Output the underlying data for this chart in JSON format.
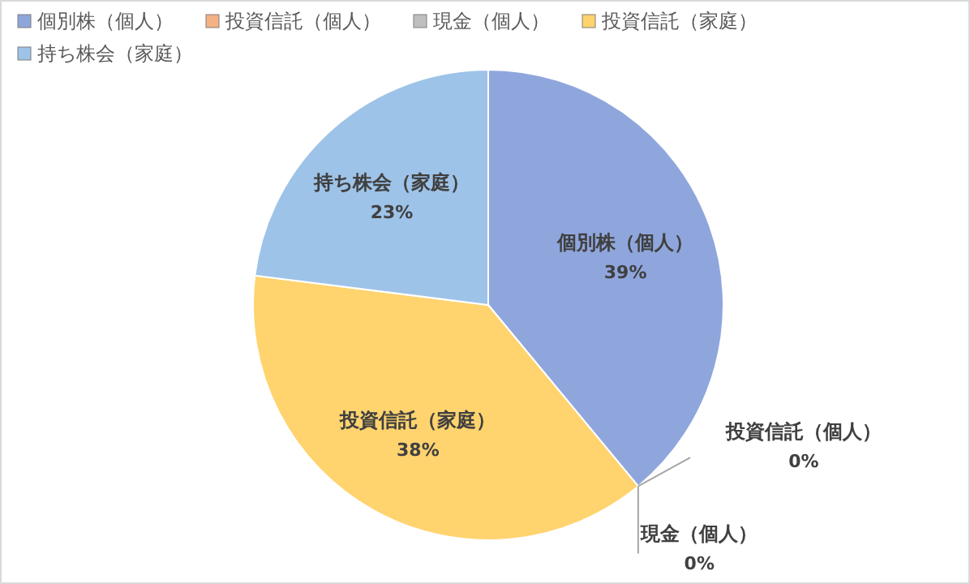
{
  "chart_data": {
    "type": "pie",
    "categories": [
      "個別株（個人）",
      "投資信託（個人）",
      "現金（個人）",
      "投資信託（家庭）",
      "持ち株会（家庭）"
    ],
    "values": [
      39,
      0,
      0,
      38,
      23
    ],
    "colors": [
      "#8fa6dd",
      "#f4b183",
      "#bfbfbf",
      "#ffd36e",
      "#9ec3e8"
    ],
    "value_labels": [
      "39%",
      "0%",
      "0%",
      "38%",
      "23%"
    ],
    "legend": "top left"
  }
}
